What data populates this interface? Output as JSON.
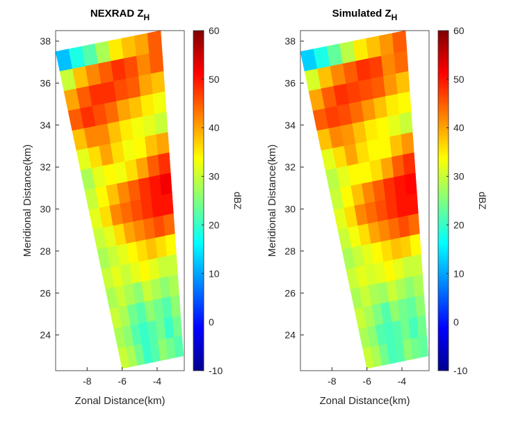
{
  "chart_data": [
    {
      "type": "heatmap",
      "title": "NEXRAD Z",
      "title_subscript": "H",
      "xlabel": "Zonal Distance(km)",
      "ylabel": "Meridional Distance(km)",
      "xlim": [
        -9.8,
        -2.45
      ],
      "ylim": [
        22.3,
        38.5
      ],
      "xticks": [
        -8,
        -6,
        -4
      ],
      "yticks": [
        24,
        26,
        28,
        30,
        32,
        34,
        36,
        38
      ],
      "colormap": "jet",
      "colorbar": {
        "label": "dBZ",
        "clim": [
          -10,
          60
        ],
        "ticks": [
          -10,
          0,
          10,
          20,
          30,
          40,
          50,
          60
        ]
      },
      "extent": {
        "top_left": [
          -9.8,
          37.5
        ],
        "top_right": [
          -3.8,
          38.5
        ],
        "bottom_left": [
          -6.0,
          22.4
        ],
        "bottom_right": [
          -2.5,
          23.0
        ]
      },
      "values": [
        [
          12,
          18,
          22,
          28,
          35,
          38,
          40,
          45
        ],
        [
          30,
          38,
          42,
          45,
          48,
          46,
          42,
          45
        ],
        [
          40,
          45,
          48,
          48,
          46,
          45,
          40,
          38
        ],
        [
          45,
          48,
          46,
          44,
          40,
          38,
          35,
          33
        ],
        [
          38,
          42,
          42,
          38,
          35,
          33,
          32,
          30
        ],
        [
          32,
          36,
          40,
          36,
          33,
          34,
          38,
          40
        ],
        [
          28,
          32,
          34,
          33,
          36,
          40,
          45,
          48
        ],
        [
          30,
          34,
          38,
          42,
          45,
          48,
          50,
          52
        ],
        [
          32,
          36,
          42,
          44,
          46,
          48,
          50,
          50
        ],
        [
          30,
          32,
          36,
          40,
          42,
          44,
          46,
          44
        ],
        [
          28,
          30,
          32,
          34,
          36,
          38,
          36,
          34
        ],
        [
          30,
          32,
          30,
          32,
          34,
          32,
          30,
          30
        ],
        [
          28,
          30,
          28,
          26,
          30,
          28,
          26,
          28
        ],
        [
          30,
          28,
          24,
          22,
          26,
          24,
          22,
          26
        ],
        [
          28,
          26,
          22,
          20,
          22,
          24,
          20,
          24
        ],
        [
          30,
          28,
          24,
          20,
          22,
          26,
          24,
          22
        ]
      ]
    },
    {
      "type": "heatmap",
      "title": "Simulated Z",
      "title_subscript": "H",
      "xlabel": "Zonal Distance(km)",
      "ylabel": "Meridional Distance(km)",
      "xlim": [
        -9.8,
        -2.45
      ],
      "ylim": [
        22.3,
        38.5
      ],
      "xticks": [
        -8,
        -6,
        -4
      ],
      "yticks": [
        24,
        26,
        28,
        30,
        32,
        34,
        36,
        38
      ],
      "colormap": "jet",
      "colorbar": {
        "label": "dBZ",
        "clim": [
          -10,
          60
        ],
        "ticks": [
          -10,
          0,
          10,
          20,
          30,
          40,
          50,
          60
        ]
      },
      "extent": {
        "top_left": [
          -9.8,
          37.5
        ],
        "top_right": [
          -3.8,
          38.5
        ],
        "bottom_left": [
          -6.0,
          22.4
        ],
        "bottom_right": [
          -2.5,
          23.0
        ]
      },
      "values": [
        [
          13,
          18,
          23,
          29,
          35,
          38,
          41,
          45
        ],
        [
          31,
          38,
          42,
          45,
          48,
          47,
          42,
          44
        ],
        [
          40,
          45,
          48,
          47,
          46,
          45,
          41,
          38
        ],
        [
          45,
          47,
          46,
          44,
          41,
          38,
          35,
          34
        ],
        [
          38,
          42,
          41,
          38,
          35,
          34,
          32,
          30
        ],
        [
          32,
          36,
          40,
          36,
          34,
          34,
          38,
          41
        ],
        [
          29,
          32,
          34,
          34,
          36,
          40,
          45,
          48
        ],
        [
          30,
          34,
          38,
          42,
          45,
          48,
          50,
          51
        ],
        [
          32,
          36,
          42,
          44,
          46,
          48,
          50,
          50
        ],
        [
          30,
          33,
          36,
          40,
          42,
          44,
          46,
          44
        ],
        [
          28,
          30,
          32,
          34,
          36,
          38,
          37,
          34
        ],
        [
          30,
          32,
          31,
          32,
          34,
          32,
          30,
          30
        ],
        [
          28,
          30,
          28,
          27,
          30,
          28,
          26,
          28
        ],
        [
          30,
          28,
          25,
          22,
          26,
          24,
          23,
          26
        ],
        [
          28,
          26,
          22,
          21,
          22,
          24,
          21,
          24
        ],
        [
          30,
          28,
          24,
          21,
          22,
          26,
          24,
          23
        ]
      ]
    }
  ]
}
